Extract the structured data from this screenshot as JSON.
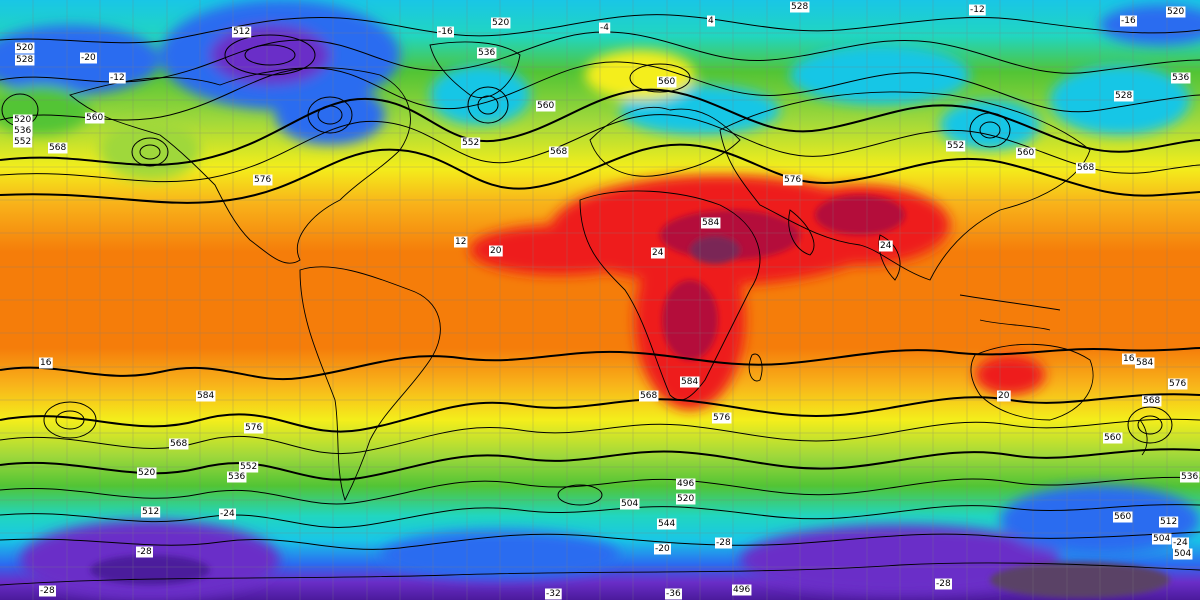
{
  "map": {
    "palette": {
      "deep_violet": "#4b1a9c",
      "violet": "#6a2ec8",
      "blue": "#2a6cf0",
      "cyan": "#19c6e6",
      "teal": "#21d6c0",
      "green": "#52c435",
      "light_green": "#9fd83b",
      "yellow": "#f4ee1b",
      "orange_yellow": "#f8b21a",
      "orange": "#f57d0a",
      "red": "#ee1b1b",
      "dark_red": "#b4103a",
      "maroon": "#7a2656",
      "gray_purple": "#5a4266",
      "contour": "#000000",
      "grid": "#7f7f7f"
    },
    "labels": [
      {
        "id": "l1",
        "text": "520"
      },
      {
        "id": "l2",
        "text": "528"
      },
      {
        "id": "l3",
        "text": "520"
      },
      {
        "id": "l4",
        "text": "536"
      },
      {
        "id": "l5",
        "text": "552"
      },
      {
        "id": "l6",
        "text": "560"
      },
      {
        "id": "l7",
        "text": "568"
      },
      {
        "id": "l8",
        "text": "576"
      },
      {
        "id": "l9",
        "text": "512"
      },
      {
        "id": "l10",
        "text": "-20"
      },
      {
        "id": "l11",
        "text": "-12"
      },
      {
        "id": "l12",
        "text": "-16"
      },
      {
        "id": "l13",
        "text": "520"
      },
      {
        "id": "l14",
        "text": "536"
      },
      {
        "id": "l15",
        "text": "560"
      },
      {
        "id": "l16",
        "text": "552"
      },
      {
        "id": "l17",
        "text": "-4"
      },
      {
        "id": "l18",
        "text": "4"
      },
      {
        "id": "l19",
        "text": "528"
      },
      {
        "id": "l20",
        "text": "560"
      },
      {
        "id": "l21",
        "text": "568"
      },
      {
        "id": "l22",
        "text": "576"
      },
      {
        "id": "l23",
        "text": "584"
      },
      {
        "id": "l24",
        "text": "-12"
      },
      {
        "id": "l25",
        "text": "-16"
      },
      {
        "id": "l26",
        "text": "520"
      },
      {
        "id": "l27",
        "text": "536"
      },
      {
        "id": "l28",
        "text": "528"
      },
      {
        "id": "l29",
        "text": "552"
      },
      {
        "id": "l30",
        "text": "560"
      },
      {
        "id": "l31",
        "text": "568"
      },
      {
        "id": "l32",
        "text": "12"
      },
      {
        "id": "l33",
        "text": "20"
      },
      {
        "id": "l34",
        "text": "24"
      },
      {
        "id": "l35",
        "text": "24"
      },
      {
        "id": "l36",
        "text": "16"
      },
      {
        "id": "l37",
        "text": "584"
      },
      {
        "id": "l38",
        "text": "576"
      },
      {
        "id": "l39",
        "text": "584"
      },
      {
        "id": "l40",
        "text": "568"
      },
      {
        "id": "l41",
        "text": "576"
      },
      {
        "id": "l42",
        "text": "16"
      },
      {
        "id": "l43",
        "text": "584"
      },
      {
        "id": "l44",
        "text": "568"
      },
      {
        "id": "l45",
        "text": "576"
      },
      {
        "id": "l46",
        "text": "20"
      },
      {
        "id": "l47",
        "text": "560"
      },
      {
        "id": "l48",
        "text": "568"
      },
      {
        "id": "l49",
        "text": "552"
      },
      {
        "id": "l50",
        "text": "536"
      },
      {
        "id": "l51",
        "text": "520"
      },
      {
        "id": "l52",
        "text": "512"
      },
      {
        "id": "l53",
        "text": "504"
      },
      {
        "id": "l54",
        "text": "520"
      },
      {
        "id": "l55",
        "text": "496"
      },
      {
        "id": "l56",
        "text": "544"
      },
      {
        "id": "l57",
        "text": "560"
      },
      {
        "id": "l58",
        "text": "536"
      },
      {
        "id": "l59",
        "text": "512"
      },
      {
        "id": "l60",
        "text": "504"
      },
      {
        "id": "l61",
        "text": "-24"
      },
      {
        "id": "l62",
        "text": "-28"
      },
      {
        "id": "l63",
        "text": "-28"
      },
      {
        "id": "l64",
        "text": "-32"
      },
      {
        "id": "l65",
        "text": "-36"
      },
      {
        "id": "l66",
        "text": "-28"
      },
      {
        "id": "l67",
        "text": "496"
      },
      {
        "id": "l68",
        "text": "504"
      },
      {
        "id": "l69",
        "text": "-24"
      },
      {
        "id": "l70",
        "text": "-20"
      },
      {
        "id": "l71",
        "text": "-28"
      }
    ]
  }
}
